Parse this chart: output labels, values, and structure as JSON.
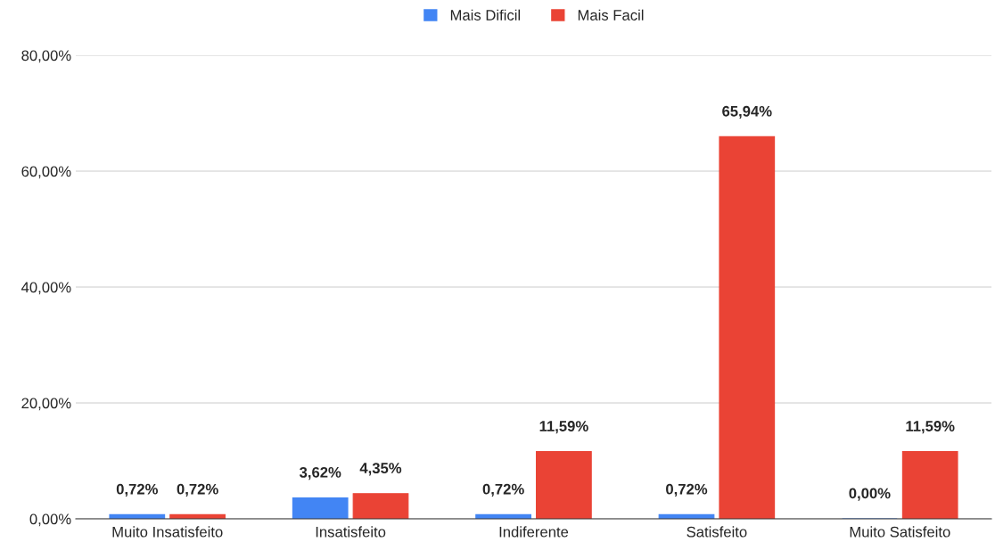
{
  "chart_data": {
    "type": "bar",
    "categories": [
      "Muito Insatisfeito",
      "Insatisfeito",
      "Indiferente",
      "Satisfeito",
      "Muito Satisfeito"
    ],
    "series": [
      {
        "name": "Mais Dificil",
        "color": "#4285f4",
        "values": [
          0.72,
          3.62,
          0.72,
          0.72,
          0.0
        ],
        "value_labels": [
          "0,72%",
          "3,62%",
          "0,72%",
          "0,72%",
          "0,00%"
        ]
      },
      {
        "name": "Mais Facil",
        "color": "#ea4335",
        "values": [
          0.72,
          4.35,
          11.59,
          65.94,
          11.59
        ],
        "value_labels": [
          "0,72%",
          "4,35%",
          "11,59%",
          "65,94%",
          "11,59%"
        ]
      }
    ],
    "ylim": [
      0,
      80
    ],
    "yticks": [
      {
        "value": 0,
        "label": "0,00%"
      },
      {
        "value": 20,
        "label": "20,00%"
      },
      {
        "value": 40,
        "label": "40,00%"
      },
      {
        "value": 60,
        "label": "60,00%"
      },
      {
        "value": 80,
        "label": "80,00%"
      }
    ],
    "grid": "y",
    "legend": "top"
  }
}
